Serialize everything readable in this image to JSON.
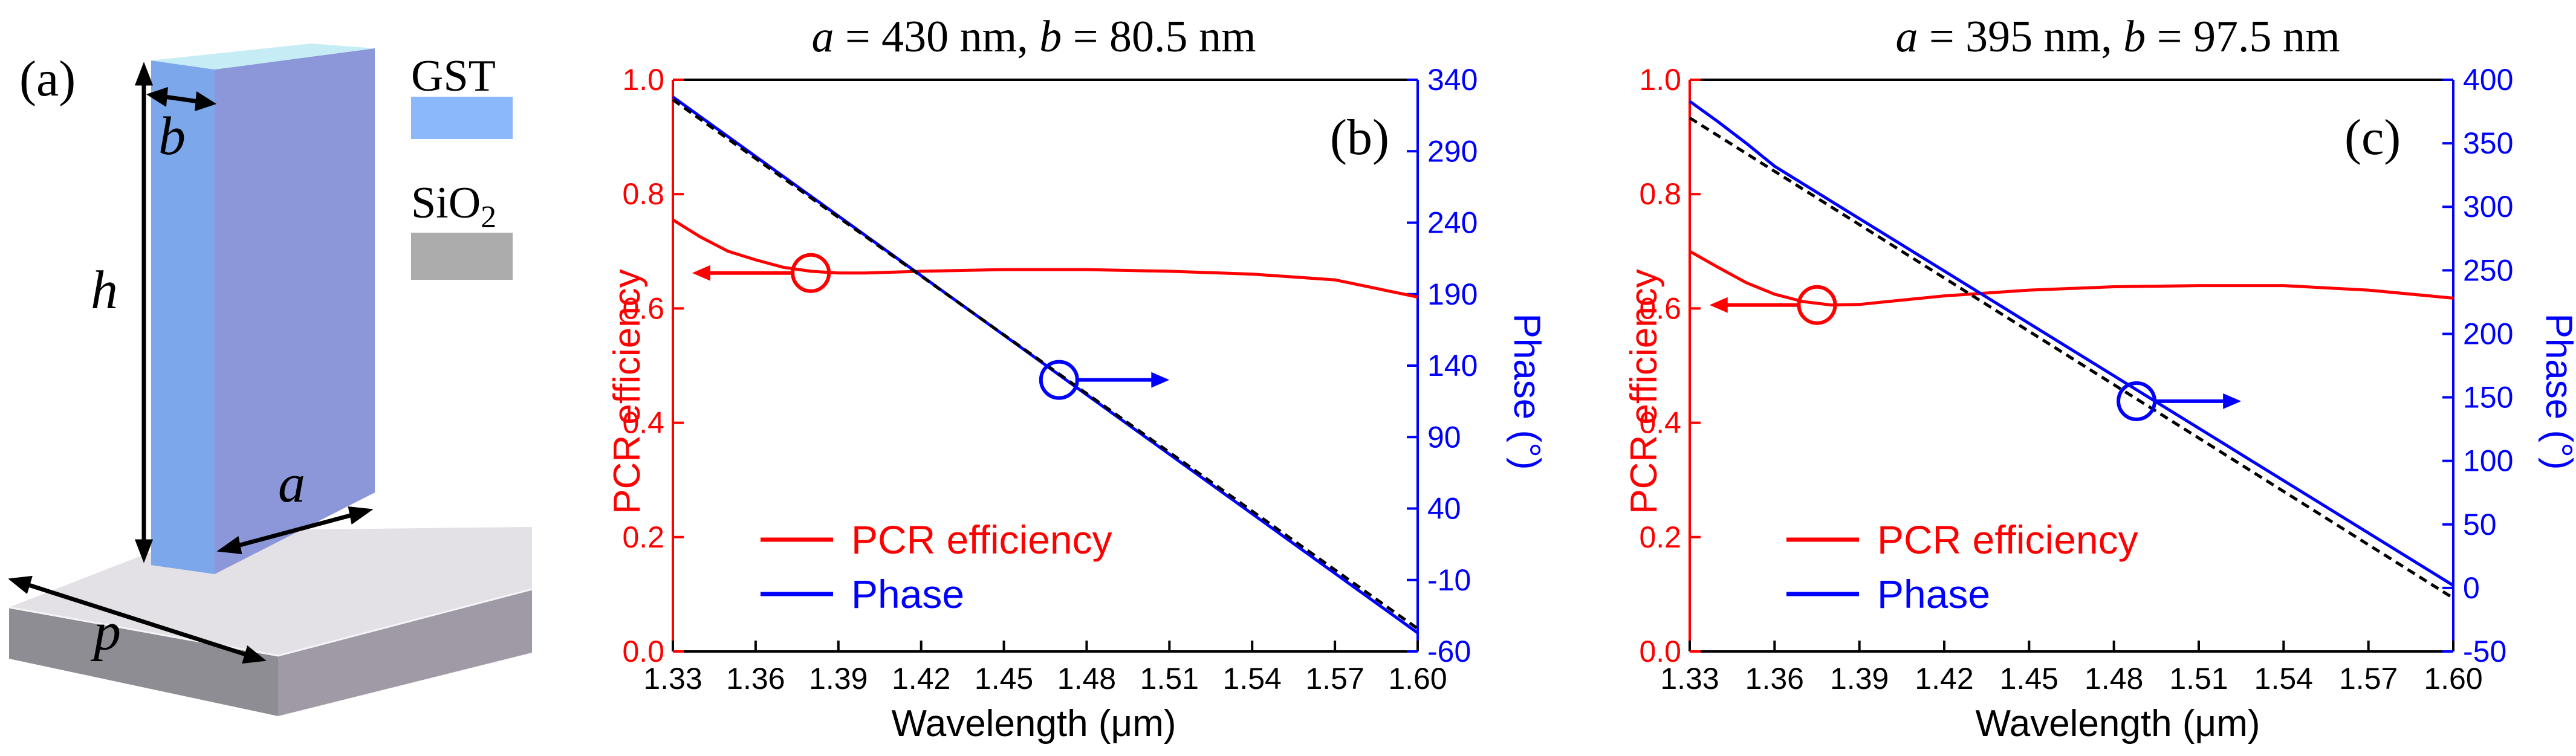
{
  "panel_a": {
    "label": "(a)",
    "legend": [
      {
        "name": "GST",
        "color": "#8ab8fa"
      },
      {
        "name": "SiO",
        "subscript": "2",
        "color": "#acacac"
      }
    ],
    "dims": {
      "b": "b",
      "h": "h",
      "a": "a",
      "p": "p"
    }
  },
  "colors": {
    "red": "#ff0000",
    "blue": "#0000ff",
    "black": "#000000"
  },
  "chart_data": [
    {
      "type": "line",
      "panel_label": "(b)",
      "title": {
        "a_var": "a",
        "a_text": " =  430 nm, ",
        "b_var": "b",
        "b_text": " = 80.5 nm"
      },
      "xlabel": "Wavelength (μm)",
      "ylabel_left": "PCR efficiency",
      "ylabel_right": "Phase (°)",
      "xlim": [
        1.33,
        1.6
      ],
      "ylim_left": [
        0.0,
        1.0
      ],
      "ylim_right": [
        -60,
        340
      ],
      "xticks": [
        "1.33",
        "1.36",
        "1.39",
        "1.42",
        "1.45",
        "1.48",
        "1.51",
        "1.54",
        "1.57",
        "1.60"
      ],
      "xtick_values": [
        1.33,
        1.36,
        1.39,
        1.42,
        1.45,
        1.48,
        1.51,
        1.54,
        1.57,
        1.6
      ],
      "yticks_left": [
        "0.0",
        "0.2",
        "0.4",
        "0.6",
        "0.8",
        "1.0"
      ],
      "ytick_left_values": [
        0.0,
        0.2,
        0.4,
        0.6,
        0.8,
        1.0
      ],
      "yticks_right": [
        "-60",
        "-10",
        "40",
        "90",
        "140",
        "190",
        "240",
        "290",
        "340"
      ],
      "ytick_right_values": [
        -60,
        -10,
        40,
        90,
        140,
        190,
        240,
        290,
        340
      ],
      "legend": [
        {
          "name": "PCR efficiency",
          "color": "#ff0000"
        },
        {
          "name": "Phase",
          "color": "#0000ff"
        }
      ],
      "series": [
        {
          "name": "PCR efficiency",
          "axis": "left",
          "color": "#ff0000",
          "dash": "",
          "x": [
            1.33,
            1.34,
            1.35,
            1.36,
            1.37,
            1.38,
            1.39,
            1.4,
            1.42,
            1.45,
            1.48,
            1.51,
            1.54,
            1.57,
            1.6
          ],
          "y": [
            0.755,
            0.725,
            0.7,
            0.685,
            0.672,
            0.665,
            0.662,
            0.662,
            0.665,
            0.668,
            0.668,
            0.665,
            0.66,
            0.65,
            0.62
          ]
        },
        {
          "name": "Phase",
          "axis": "right",
          "color": "#0000ff",
          "dash": "",
          "x": [
            1.33,
            1.6
          ],
          "y": [
            328,
            -47
          ]
        },
        {
          "name": "Linear fit",
          "axis": "right",
          "color": "#000000",
          "dash": "14,9",
          "x": [
            1.33,
            1.6
          ],
          "y": [
            326,
            -44
          ]
        }
      ],
      "annotations": [
        {
          "type": "circle",
          "axis": "left",
          "x": 1.38,
          "y": 0.662,
          "color": "#ff0000",
          "arrow": "left",
          "arrow_to_x": 1.337
        },
        {
          "type": "circle",
          "axis": "right",
          "x": 1.47,
          "y": 130,
          "color": "#0000ff",
          "arrow": "right",
          "arrow_to_x": 1.51
        }
      ]
    },
    {
      "type": "line",
      "panel_label": "(c)",
      "title": {
        "a_var": "a",
        "a_text": " =  395 nm, ",
        "b_var": "b",
        "b_text": " = 97.5 nm"
      },
      "xlabel": "Wavelength (μm)",
      "ylabel_left": "PCR efficiency",
      "ylabel_right": "Phase (°)",
      "xlim": [
        1.33,
        1.6
      ],
      "ylim_left": [
        0.0,
        1.0
      ],
      "ylim_right": [
        -50,
        400
      ],
      "xticks": [
        "1.33",
        "1.36",
        "1.39",
        "1.42",
        "1.45",
        "1.48",
        "1.51",
        "1.54",
        "1.57",
        "1.60"
      ],
      "xtick_values": [
        1.33,
        1.36,
        1.39,
        1.42,
        1.45,
        1.48,
        1.51,
        1.54,
        1.57,
        1.6
      ],
      "yticks_left": [
        "0.0",
        "0.2",
        "0.4",
        "0.6",
        "0.8",
        "1.0"
      ],
      "ytick_left_values": [
        0.0,
        0.2,
        0.4,
        0.6,
        0.8,
        1.0
      ],
      "yticks_right": [
        "-50",
        "0",
        "50",
        "100",
        "150",
        "200",
        "250",
        "300",
        "350",
        "400"
      ],
      "ytick_right_values": [
        -50,
        0,
        50,
        100,
        150,
        200,
        250,
        300,
        350,
        400
      ],
      "legend": [
        {
          "name": "PCR efficiency",
          "color": "#ff0000"
        },
        {
          "name": "Phase",
          "color": "#0000ff"
        }
      ],
      "series": [
        {
          "name": "PCR efficiency",
          "axis": "left",
          "color": "#ff0000",
          "dash": "",
          "x": [
            1.33,
            1.34,
            1.35,
            1.36,
            1.37,
            1.38,
            1.39,
            1.4,
            1.42,
            1.45,
            1.48,
            1.51,
            1.54,
            1.57,
            1.6
          ],
          "y": [
            0.7,
            0.672,
            0.645,
            0.625,
            0.612,
            0.606,
            0.607,
            0.612,
            0.622,
            0.632,
            0.638,
            0.64,
            0.64,
            0.632,
            0.618
          ]
        },
        {
          "name": "Phase",
          "axis": "right",
          "color": "#0000ff",
          "dash": "",
          "x": [
            1.33,
            1.34,
            1.35,
            1.36,
            1.6
          ],
          "y": [
            383,
            367,
            350,
            332,
            2
          ]
        },
        {
          "name": "Linear fit",
          "axis": "right",
          "color": "#000000",
          "dash": "14,9",
          "x": [
            1.33,
            1.6
          ],
          "y": [
            370,
            -8
          ]
        }
      ],
      "annotations": [
        {
          "type": "circle",
          "axis": "left",
          "x": 1.375,
          "y": 0.606,
          "color": "#ff0000",
          "arrow": "left",
          "arrow_to_x": 1.337
        },
        {
          "type": "circle",
          "axis": "right",
          "x": 1.488,
          "y": 147,
          "color": "#0000ff",
          "arrow": "right",
          "arrow_to_x": 1.525
        }
      ]
    }
  ]
}
